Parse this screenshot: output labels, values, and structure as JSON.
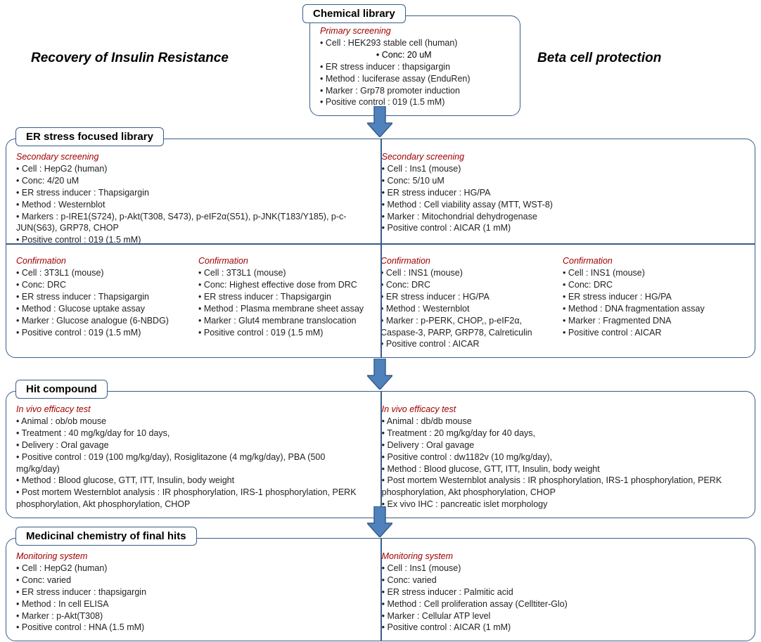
{
  "colors": {
    "border": "#385d8a",
    "arrowFill": "#4f81bd",
    "arrowStroke": "#385d8a",
    "subheading": "#a00000",
    "text": "#222222"
  },
  "titleLeft": "Recovery of  Insulin Resistance",
  "titleRight": "Beta cell protection",
  "labels": {
    "stage1": "Chemical library",
    "stage2": "ER stress focused library",
    "stage3": "Hit compound",
    "stage4": "Medicinal chemistry of final hits"
  },
  "box1": {
    "heading": "Primary screening",
    "lines": [
      "Cell : HEK293 stable cell (human)",
      "                       • Conc: 20 uM",
      "ER stress inducer : thapsigargin",
      "Method : luciferase assay (EnduRen)",
      "Marker : Grp78 promoter induction",
      "Positive control : 019 (1.5 mM)"
    ]
  },
  "box2": {
    "left": {
      "heading": "Secondary screening",
      "lines": [
        "Cell : HepG2 (human)",
        "Conc: 4/20 uM",
        "ER stress inducer : Thapsigargin",
        "Method : Westernblot",
        "Markers : p-IRE1(S724), p-Akt(T308, S473), p-eIF2α(S51),  p-JNK(T183/Y185), p-c-JUN(S63), GRP78, CHOP",
        "Positive control : 019 (1.5 mM)"
      ]
    },
    "right": {
      "heading": "Secondary screening",
      "lines": [
        "Cell : Ins1 (mouse)",
        "Conc: 5/10 uM",
        "ER stress inducer : HG/PA",
        "Method :  Cell viability assay (MTT, WST-8)",
        "Marker : Mitochondrial dehydrogenase",
        "Positive control : AICAR (1 mM)"
      ]
    },
    "q1": {
      "heading": "Confirmation",
      "lines": [
        "Cell : 3T3L1 (mouse)",
        "Conc: DRC",
        "ER stress inducer : Thapsigargin",
        "Method : Glucose uptake assay",
        "Marker : Glucose analogue (6-NBDG)",
        "Positive control : 019 (1.5 mM)"
      ]
    },
    "q2": {
      "heading": "Confirmation",
      "lines": [
        "Cell : 3T3L1 (mouse)",
        "Conc: Highest effective dose from DRC",
        "ER stress inducer : Thapsigargin",
        "Method : Plasma membrane sheet assay",
        "Marker : Glut4 membrane translocation",
        "Positive control : 019 (1.5 mM)"
      ]
    },
    "q3": {
      "heading": "Confirmation",
      "lines": [
        "Cell : INS1 (mouse)",
        "Conc: DRC",
        "ER stress inducer : HG/PA",
        "Method :  Westernblot",
        "Marker :  p-PERK, CHOP,, p-eIF2α, Caspase-3, PARP, GRP78, Calreticulin",
        "Positive control : AICAR"
      ]
    },
    "q4": {
      "heading": "Confirmation",
      "lines": [
        "Cell : INS1 (mouse)",
        "Conc: DRC",
        "ER stress inducer : HG/PA",
        "Method : DNA fragmentation assay",
        "Marker : Fragmented DNA",
        "Positive control : AICAR"
      ]
    }
  },
  "box3": {
    "left": {
      "heading": "In vivo efficacy test",
      "lines": [
        "Animal : ob/ob mouse",
        "Treatment : 40 mg/kg/day for 10 days,",
        "Delivery : Oral gavage",
        "Positive control : 019 (100 mg/kg/day),  Rosiglitazone (4 mg/kg/day),  PBA (500 mg/kg/day)",
        "Method : Blood glucose, GTT, ITT,  Insulin, body weight",
        "Post mortem Westernblot analysis : IR phosphorylation, IRS-1 phosphorylation, PERK phosphorylation, Akt phosphorylation, CHOP"
      ]
    },
    "right": {
      "heading": "In vivo efficacy test",
      "lines": [
        "Animal : db/db mouse",
        "Treatment : 20 mg/kg/day for 40 days,",
        "Delivery : Oral gavage",
        "Positive control : dw1182v (10 mg/kg/day),",
        "Method : Blood glucose, GTT, ITT,  Insulin, body weight",
        "Post mortem Westernblot analysis : IR phosphorylation, IRS-1 phosphorylation, PERK phosphorylation, Akt phosphorylation, CHOP",
        "Ex vivo IHC : pancreatic islet morphology"
      ]
    }
  },
  "box4": {
    "left": {
      "heading": "Monitoring system",
      "lines": [
        "Cell : HepG2 (human)",
        "Conc: varied",
        "ER stress inducer : thapsigargin",
        "Method : In cell ELISA",
        "Marker : p-Akt(T308)",
        "Positive control : HNA (1.5 mM)"
      ]
    },
    "right": {
      "heading": "Monitoring system",
      "lines": [
        "Cell : Ins1 (mouse)",
        "Conc: varied",
        "ER stress inducer : Palmitic acid",
        "Method : Cell proliferation assay (Celltiter-Glo)",
        "Marker : Cellular ATP level",
        "Positive control : AICAR (1 mM)"
      ]
    }
  }
}
